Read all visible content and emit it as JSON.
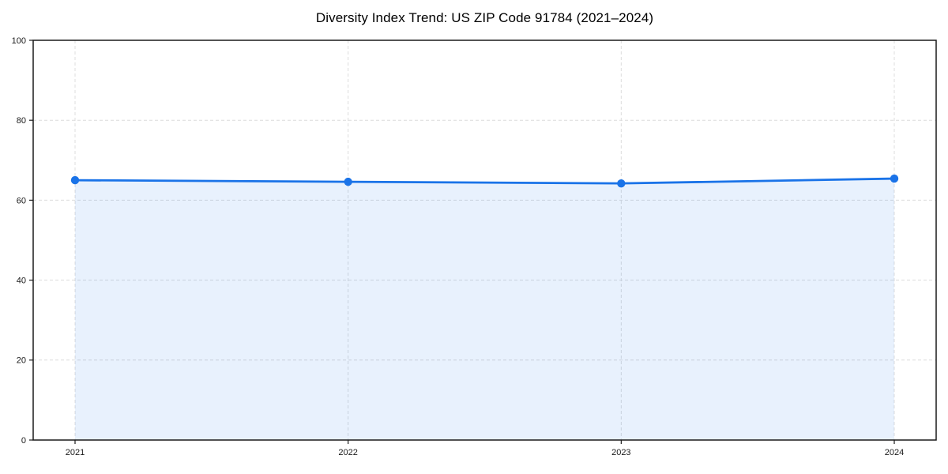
{
  "title": "Diversity Index Trend: US ZIP Code 91784 (2021–2024)",
  "chart_data": {
    "type": "area",
    "title": "Diversity Index Trend: US ZIP Code 91784 (2021–2024)",
    "x": [
      "2021",
      "2022",
      "2023",
      "2024"
    ],
    "values": [
      65.0,
      64.6,
      64.2,
      65.4
    ],
    "xlabel": "",
    "ylabel": "",
    "ylim": [
      0,
      100
    ],
    "yticks": [
      0,
      20,
      40,
      60,
      80,
      100
    ],
    "grid": true,
    "grid_style": "dashed",
    "legend": "none",
    "colors": {
      "line": "#1a73e8",
      "marker": "#1a73e8",
      "fill": "#1a73e8",
      "fill_opacity": 0.1,
      "grid": "#dcdcdc",
      "axis": "#1a1a1a",
      "tick_text": "#1a1a1a",
      "background": "#ffffff"
    }
  }
}
